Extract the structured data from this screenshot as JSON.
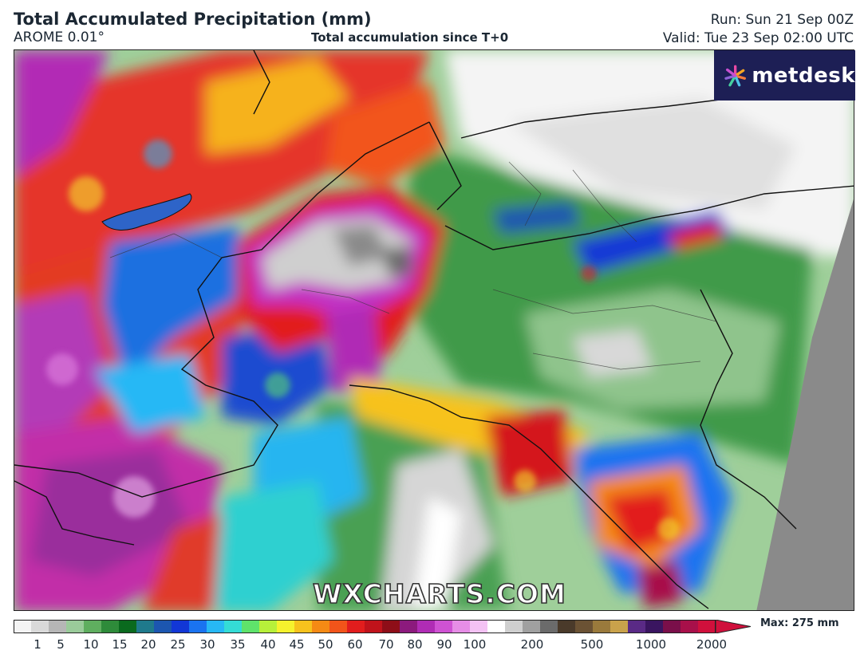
{
  "header": {
    "title": "Total Accumulated Precipitation (mm)",
    "model": "AROME 0.01°",
    "description": "Total accumulation since T+0",
    "run": "Run: Sun 21 Sep 00Z",
    "valid": "Valid: Tue 23 Sep 02:00 UTC"
  },
  "branding": {
    "logo_text": "metdesk",
    "logo_icon": "metdesk-burst-icon",
    "logo_bg": "#1d1f55",
    "watermark": "WXCHARTS.COM"
  },
  "legend": {
    "ticks": [
      "1",
      "5",
      "10",
      "15",
      "20",
      "25",
      "30",
      "35",
      "40",
      "45",
      "50",
      "60",
      "70",
      "80",
      "90",
      "100",
      "200",
      "500",
      "1000",
      "2000"
    ],
    "max_label": "Max: 275 mm",
    "colors": [
      "#f4f4f4",
      "#d9d9d9",
      "#b6b6b6",
      "#9acb9a",
      "#5fae5f",
      "#2e8b3a",
      "#0a6a1e",
      "#1f7a8c",
      "#1c56b0",
      "#1237d6",
      "#1a73f0",
      "#27b8f5",
      "#34dcd6",
      "#5fe36b",
      "#b7f03a",
      "#f6f22d",
      "#f7c21d",
      "#f58a14",
      "#f2541a",
      "#e21d1d",
      "#c0131b",
      "#8e0e18",
      "#8c1a7d",
      "#b02cb5",
      "#cf52d3",
      "#e68de6",
      "#f4c2f4",
      "#ffffff",
      "#cfcfcf",
      "#a0a0a0",
      "#6b6b6b",
      "#4a3a2a",
      "#6b5234",
      "#9a7a3c",
      "#c9a24b",
      "#5a2a86",
      "#3a1560",
      "#7a0f4a",
      "#a8104a",
      "#d0103c"
    ]
  }
}
